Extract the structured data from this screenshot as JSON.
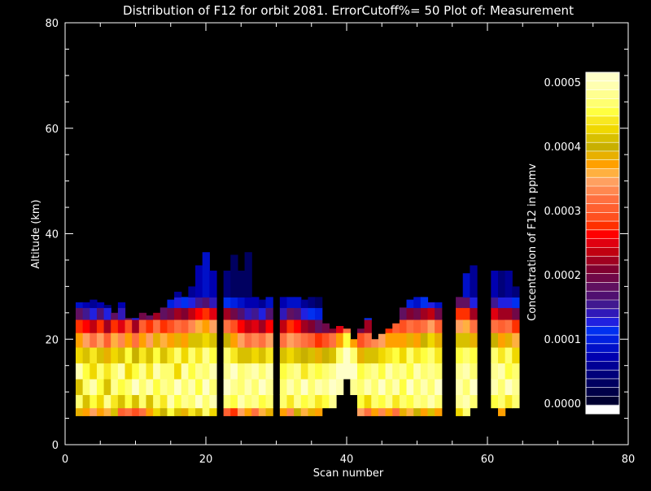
{
  "chart_data": {
    "type": "heatmap",
    "title": "Distribution of F12 for orbit 2081. ErrorCutoff%= 50  Plot of: Measurement",
    "xlabel": "Scan number",
    "ylabel": "Altitude (km)",
    "xlim": [
      0,
      80
    ],
    "ylim": [
      0,
      80
    ],
    "x_ticks": [
      "0",
      "20",
      "40",
      "60",
      "80"
    ],
    "y_ticks": [
      "0",
      "20",
      "40",
      "60",
      "80"
    ],
    "colorbar": {
      "label": "Concentration of F12 in ppmv",
      "range": [
        0.0,
        0.0005
      ],
      "ticks": [
        "0.0000",
        "0.0001",
        "0.0002",
        "0.0003",
        "0.0004",
        "0.0005"
      ],
      "colors": [
        "#ffffff",
        "#000030",
        "#000048",
        "#000060",
        "#00007a",
        "#000095",
        "#0000b0",
        "#0010c8",
        "#0020e0",
        "#0030f0",
        "#2020e0",
        "#3018b8",
        "#401890",
        "#501070",
        "#601060",
        "#700848",
        "#800030",
        "#a00020",
        "#c00010",
        "#e00010",
        "#ff0000",
        "#ff3000",
        "#ff5020",
        "#ff6030",
        "#ff7040",
        "#ff8850",
        "#ffa060",
        "#ffb040",
        "#ffa000",
        "#e8b000",
        "#c8b000",
        "#d8c000",
        "#f0d800",
        "#f8e820",
        "#ffff40",
        "#ffff70",
        "#ffff90",
        "#ffffb0",
        "#ffffc8"
      ]
    },
    "columns": [
      {
        "x": 2,
        "z": [
          0.00038,
          0.00045,
          0.0004,
          0.00048,
          0.00042,
          0.00036,
          0.00028,
          0.00018,
          9e-05,
          4e-05
        ]
      },
      {
        "x": 3,
        "z": [
          0.00036,
          0.0004,
          0.00046,
          0.00044,
          0.0004,
          0.00034,
          0.00026,
          0.00016,
          8e-05,
          4e-05
        ]
      },
      {
        "x": 4,
        "z": [
          0.00034,
          0.00044,
          0.00048,
          0.00042,
          0.00043,
          0.00032,
          0.00024,
          0.00014,
          7e-05,
          3e-05
        ]
      },
      {
        "x": 5,
        "z": [
          0.00037,
          0.00042,
          0.00044,
          0.00046,
          0.00041,
          0.00034,
          0.00027,
          0.00017,
          8e-05,
          4e-05
        ]
      },
      {
        "x": 6,
        "z": [
          0.00035,
          0.00047,
          0.00041,
          0.00043,
          0.00038,
          0.0003,
          0.00022,
          0.00013,
          6e-05,
          3e-05
        ]
      },
      {
        "x": 7,
        "z": [
          0.0004,
          0.00043,
          0.00047,
          0.00045,
          0.00042,
          0.00035,
          0.00028,
          0.00018,
          9e-05,
          4e-05
        ]
      },
      {
        "x": 8,
        "z": [
          0.0003,
          0.0004,
          0.00044,
          0.00048,
          0.0004,
          0.00033,
          0.00025,
          0.00015,
          8e-05,
          4e-05
        ]
      },
      {
        "x": 9,
        "z": [
          0.00032,
          0.00044,
          0.00046,
          0.00042,
          0.00044,
          0.00036,
          0.00029,
          0.00019,
          0.0001,
          5e-05
        ]
      },
      {
        "x": 10,
        "z": [
          0.00029,
          0.00041,
          0.00049,
          0.00044,
          0.00039,
          0.00031,
          0.00023,
          0.00014,
          7e-05,
          3e-05
        ]
      },
      {
        "x": 11,
        "z": [
          0.00031,
          0.00045,
          0.00045,
          0.00047,
          0.00043,
          0.00037,
          0.0003,
          0.0002,
          0.00011,
          5e-05
        ]
      },
      {
        "x": 12,
        "z": [
          0.00036,
          0.0004,
          0.00048,
          0.00043,
          0.00041,
          0.00034,
          0.00027,
          0.00018,
          9e-05,
          4e-05
        ]
      },
      {
        "x": 13,
        "z": [
          0.00042,
          0.00046,
          0.00044,
          0.00048,
          0.00044,
          0.00038,
          0.00031,
          0.00022,
          0.00012,
          6e-05
        ]
      },
      {
        "x": 14,
        "z": [
          0.00039,
          0.00043,
          0.00047,
          0.00045,
          0.0004,
          0.00035,
          0.00028,
          0.00019,
          0.0001,
          5e-05
        ]
      },
      {
        "x": 15,
        "z": [
          0.00044,
          0.00048,
          0.00045,
          0.00046,
          0.00043,
          0.00036,
          0.00029,
          0.0002,
          0.00011,
          6e-05
        ]
      },
      {
        "x": 16,
        "z": [
          0.00041,
          0.00044,
          0.00049,
          0.00042,
          0.00045,
          0.00038,
          0.00031,
          0.00022,
          0.00013,
          7e-05
        ]
      },
      {
        "x": 17,
        "z": [
          0.00038,
          0.00047,
          0.00046,
          0.00048,
          0.00042,
          0.00037,
          0.0003,
          0.00021,
          0.00012,
          6e-05
        ]
      },
      {
        "x": 18,
        "z": [
          0.00043,
          0.00045,
          0.00048,
          0.00044,
          0.00046,
          0.0004,
          0.00033,
          0.00024,
          0.00014,
          7e-05
        ]
      },
      {
        "x": 19,
        "z": [
          0.0004,
          0.00049,
          0.00044,
          0.00047,
          0.00043,
          0.00041,
          0.00035,
          0.00026,
          0.00016,
          8e-05
        ]
      },
      {
        "x": 20,
        "z": [
          0.00045,
          0.00046,
          0.00049,
          0.00045,
          0.00047,
          0.00042,
          0.00036,
          0.00027,
          0.00017,
          9e-05
        ]
      },
      {
        "x": 21,
        "z": [
          0.00042,
          0.00048,
          0.00046,
          0.00048,
          0.00044,
          0.0004,
          0.00034,
          0.00025,
          0.00015,
          8e-05
        ]
      },
      {
        "x": 23,
        "z": [
          0.0003,
          0.00046,
          0.00049,
          0.00047,
          0.00045,
          0.00039,
          0.00031,
          0.00022,
          0.00012,
          6e-05
        ]
      },
      {
        "x": 24,
        "z": [
          0.00028,
          0.00044,
          0.00047,
          0.00049,
          0.00043,
          0.00037,
          0.00029,
          0.0002,
          0.00011,
          5e-05
        ]
      },
      {
        "x": 25,
        "z": [
          0.00034,
          0.00048,
          0.00045,
          0.00046,
          0.00041,
          0.00034,
          0.00026,
          0.00017,
          9e-05,
          4e-05
        ]
      },
      {
        "x": 26,
        "z": [
          0.00037,
          0.00045,
          0.00048,
          0.00047,
          0.0004,
          0.00032,
          0.00024,
          0.00015,
          8e-05,
          4e-05
        ]
      },
      {
        "x": 27,
        "z": [
          0.00032,
          0.00047,
          0.00046,
          0.00048,
          0.00042,
          0.00033,
          0.00025,
          0.00016,
          8e-05,
          4e-05
        ]
      },
      {
        "x": 28,
        "z": [
          0.00035,
          0.00044,
          0.00049,
          0.00045,
          0.00041,
          0.00031,
          0.00023,
          0.00014,
          7e-05,
          3e-05
        ]
      },
      {
        "x": 29,
        "z": [
          0.00038,
          0.00046,
          0.00047,
          0.00048,
          0.00043,
          0.00034,
          0.00026,
          0.00017,
          9e-05,
          4e-05
        ]
      },
      {
        "x": 31,
        "z": [
          0.00036,
          0.00045,
          0.00046,
          0.00044,
          0.0004,
          0.00032,
          0.00024,
          0.00015,
          8e-05,
          4e-05
        ]
      },
      {
        "x": 32,
        "z": [
          0.00033,
          0.00043,
          0.00048,
          0.00046,
          0.00042,
          0.00034,
          0.00027,
          0.00018,
          9e-05,
          4e-05
        ]
      },
      {
        "x": 33,
        "z": [
          0.00039,
          0.00047,
          0.00045,
          0.00047,
          0.00041,
          0.00033,
          0.00026,
          0.00017,
          9e-05,
          4e-05
        ]
      },
      {
        "x": 34,
        "z": [
          0.00035,
          0.00044,
          0.00049,
          0.00043,
          0.00039,
          0.00031,
          0.00023,
          0.00014,
          7e-05,
          3e-05
        ]
      },
      {
        "x": 35,
        "z": [
          0.00038,
          0.00046,
          0.00046,
          0.00045,
          0.0004,
          0.0003,
          0.00021,
          0.00012,
          6e-05,
          3e-05
        ]
      },
      {
        "x": 36,
        "z": [
          0.00036,
          0.00043,
          0.00048,
          0.00044,
          0.00038,
          0.00028,
          0.00019,
          0.00011,
          5e-05,
          2e-05
        ]
      },
      {
        "x": 37,
        "z": [
          null,
          0.00044,
          0.00047,
          0.00046,
          0.00039,
          0.00029,
          0.0002,
          0.00011,
          5e-05,
          2e-05
        ]
      },
      {
        "x": 38,
        "z": [
          null,
          0.00047,
          0.00049,
          0.00047,
          0.00041,
          0.00031,
          0.00021,
          0.00012,
          6e-05,
          3e-05
        ]
      },
      {
        "x": 39,
        "z": [
          null,
          null,
          0.00048,
          0.00049,
          0.00045,
          0.00036,
          0.00025,
          0.00014,
          7e-05,
          3e-05
        ]
      },
      {
        "x": 40,
        "z": [
          null,
          null,
          null,
          0.00049,
          0.0005,
          0.00044,
          0.00031,
          0.00017,
          8e-05,
          4e-05
        ]
      },
      {
        "x": 41,
        "z": [
          null,
          null,
          0.00047,
          0.00049,
          0.00046,
          0.00037,
          0.00026,
          0.00014,
          7e-05,
          3e-05
        ]
      },
      {
        "x": 42,
        "z": [
          0.00034,
          0.00044,
          0.00046,
          0.00044,
          0.00038,
          0.00029,
          0.0002,
          0.00011,
          5e-05,
          2e-05
        ]
      },
      {
        "x": 43,
        "z": [
          0.00032,
          0.00042,
          0.00048,
          0.00045,
          0.0004,
          0.00031,
          0.00022,
          0.00012,
          6e-05,
          3e-05
        ]
      },
      {
        "x": 44,
        "z": [
          0.00037,
          0.00046,
          0.00045,
          0.00047,
          0.00041,
          0.00033,
          0.00024,
          0.00014,
          7e-05,
          3e-05
        ]
      },
      {
        "x": 45,
        "z": [
          0.00033,
          0.00044,
          0.00049,
          0.00044,
          0.00042,
          0.00034,
          0.00026,
          0.00016,
          8e-05,
          4e-05
        ]
      },
      {
        "x": 46,
        "z": [
          0.00036,
          0.00047,
          0.00046,
          0.00048,
          0.00043,
          0.00036,
          0.00028,
          0.00018,
          9e-05,
          4e-05
        ]
      },
      {
        "x": 47,
        "z": [
          0.00031,
          0.00043,
          0.00048,
          0.00045,
          0.00044,
          0.00037,
          0.0003,
          0.0002,
          0.0001,
          5e-05
        ]
      },
      {
        "x": 48,
        "z": [
          0.00038,
          0.00046,
          0.00044,
          0.00047,
          0.00042,
          0.00036,
          0.00029,
          0.00019,
          0.0001,
          5e-05
        ]
      },
      {
        "x": 49,
        "z": [
          0.00035,
          0.00044,
          0.00049,
          0.00044,
          0.00045,
          0.00038,
          0.00031,
          0.00021,
          0.00011,
          5e-05
        ]
      },
      {
        "x": 50,
        "z": [
          0.00039,
          0.00047,
          0.00046,
          0.00048,
          0.00043,
          0.00037,
          0.0003,
          0.0002,
          0.0001,
          5e-05
        ]
      },
      {
        "x": 51,
        "z": [
          0.00036,
          0.00045,
          0.00048,
          0.00045,
          0.00044,
          0.00039,
          0.00032,
          0.00022,
          0.00012,
          6e-05
        ]
      },
      {
        "x": 52,
        "z": [
          0.0004,
          0.00048,
          0.00045,
          0.00047,
          0.00046,
          0.00042,
          0.00034,
          0.00024,
          0.00013,
          6e-05
        ]
      },
      {
        "x": 53,
        "z": [
          0.00037,
          0.00046,
          0.00049,
          0.00046,
          0.00043,
          0.00038,
          0.0003,
          0.0002,
          0.0001,
          5e-05
        ]
      },
      {
        "x": 56,
        "z": [
          0.00042,
          0.00047,
          0.00048,
          0.00047,
          0.00044,
          0.0004,
          0.00034,
          0.00027,
          0.00018,
          9e-05
        ]
      },
      {
        "x": 57,
        "z": [
          0.00045,
          0.00048,
          0.00046,
          0.00048,
          0.00046,
          0.00041,
          0.00035,
          0.00028,
          0.00019,
          0.0001
        ]
      },
      {
        "x": 58,
        "z": [
          null,
          0.00046,
          0.00049,
          0.00046,
          0.00044,
          0.00038,
          0.00031,
          0.00023,
          0.00014,
          7e-05
        ]
      },
      {
        "x": 61,
        "z": [
          null,
          0.00044,
          0.00048,
          0.00047,
          0.00045,
          0.00039,
          0.00032,
          0.00025,
          0.00016,
          8e-05
        ]
      },
      {
        "x": 62,
        "z": [
          0.00036,
          0.00046,
          0.00046,
          0.00048,
          0.00043,
          0.00037,
          0.0003,
          0.00022,
          0.00013,
          6e-05
        ]
      },
      {
        "x": 63,
        "z": [
          null,
          0.00043,
          0.00049,
          0.00044,
          0.00045,
          0.00038,
          0.00031,
          0.00023,
          0.00014,
          7e-05
        ]
      },
      {
        "x": 64,
        "z": [
          null,
          0.00045,
          0.00047,
          0.00046,
          0.00042,
          0.00035,
          0.00028,
          0.0002,
          0.00012,
          6e-05
        ]
      }
    ],
    "altitudes": [
      6,
      8,
      11,
      14,
      17,
      20,
      22.5,
      25,
      27,
      29
    ],
    "top_altitude": [
      27,
      27,
      27.5,
      27,
      26.5,
      25,
      27,
      24,
      24,
      25,
      24.5,
      25,
      26,
      27.5,
      29,
      28,
      30,
      34,
      36.5,
      33,
      33,
      36,
      33,
      36.5,
      28,
      27.5,
      28,
      28,
      28,
      28,
      27.5,
      28,
      28,
      23,
      22,
      22.5,
      22,
      20,
      22,
      24,
      20,
      21,
      22,
      23,
      26,
      27.5,
      28,
      28,
      27,
      27,
      28,
      32.5,
      34,
      33,
      33,
      33,
      30
    ],
    "bottom_altitude": 5.5
  }
}
